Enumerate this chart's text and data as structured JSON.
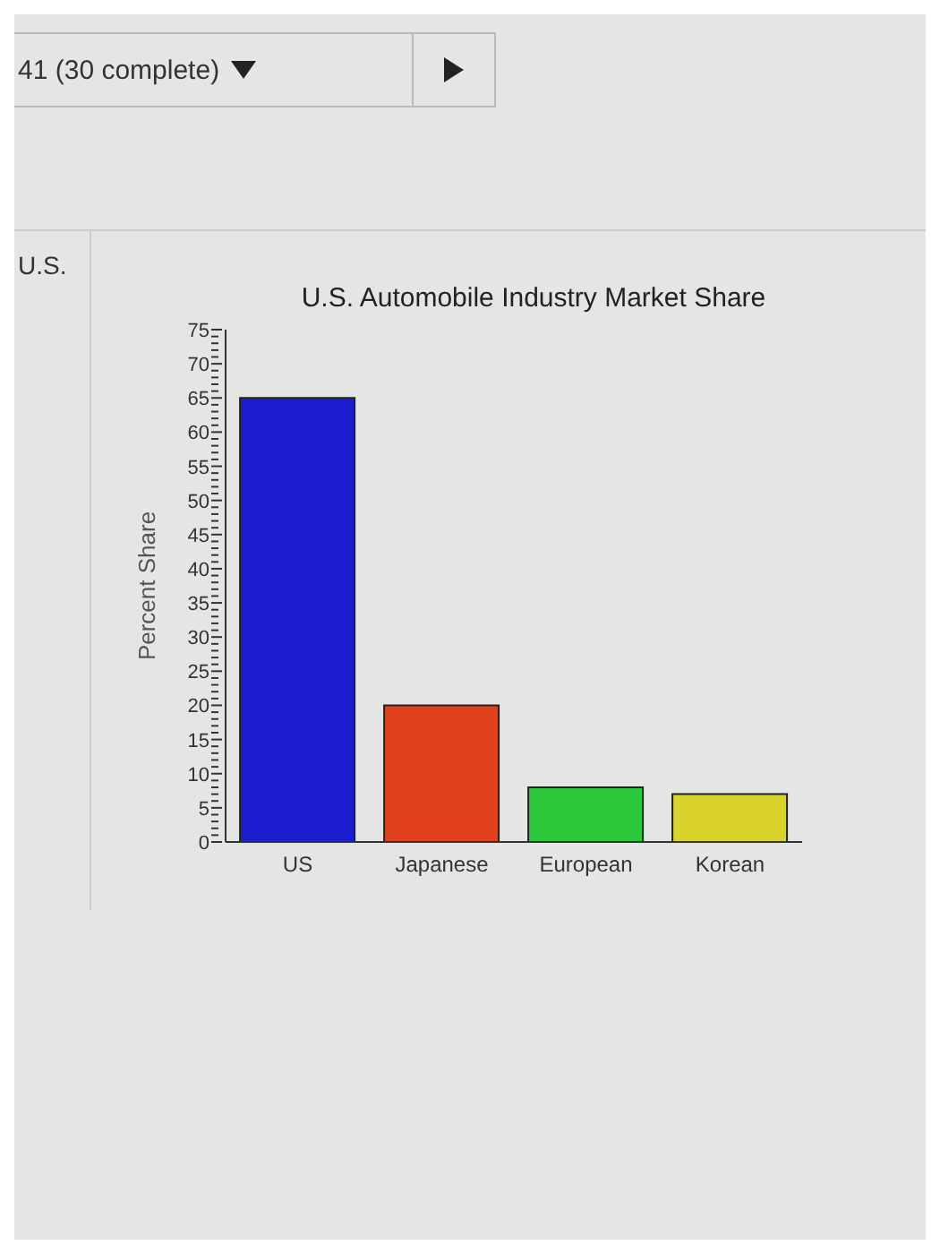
{
  "chart_data": {
    "type": "bar",
    "title": "U.S. Automobile Industry Market Share",
    "ylabel": "Percent Share",
    "categories": [
      "US",
      "Japanese",
      "European",
      "Korean"
    ],
    "values": [
      65,
      20,
      8,
      7
    ],
    "colors": [
      "#1c1cd0",
      "#e0401c",
      "#2cc83c",
      "#d8d42c"
    ],
    "ylim": [
      0,
      75
    ],
    "yticks": [
      0,
      {
        "value": 1,
        "label": null
      },
      {
        "value": 2,
        "label": null
      },
      {
        "value": 3,
        "label": null
      },
      {
        "value": 4,
        "label": null
      },
      5,
      {
        "value": 6,
        "label": null
      },
      {
        "value": 7,
        "label": null
      },
      {
        "value": 8,
        "label": null
      },
      {
        "value": 9,
        "label": null
      },
      10,
      {
        "value": 11,
        "label": null
      },
      {
        "value": 12,
        "label": null
      },
      {
        "value": 13,
        "label": null
      },
      {
        "value": 14,
        "label": null
      },
      15,
      {
        "value": 16,
        "label": null
      },
      {
        "value": 17,
        "label": null
      },
      {
        "value": 18,
        "label": null
      },
      {
        "value": 19,
        "label": null
      },
      20,
      {
        "value": 21,
        "label": null
      },
      {
        "value": 22,
        "label": null
      },
      {
        "value": 23,
        "label": null
      },
      {
        "value": 24,
        "label": null
      },
      25,
      {
        "value": 26,
        "label": null
      },
      {
        "value": 27,
        "label": null
      },
      {
        "value": 28,
        "label": null
      },
      {
        "value": 29,
        "label": null
      },
      30,
      {
        "value": 31,
        "label": null
      },
      {
        "value": 32,
        "label": null
      },
      {
        "value": 33,
        "label": null
      },
      {
        "value": 34,
        "label": null
      },
      35,
      {
        "value": 36,
        "label": null
      },
      {
        "value": 37,
        "label": null
      },
      {
        "value": 38,
        "label": null
      },
      {
        "value": 39,
        "label": null
      },
      40,
      {
        "value": 41,
        "label": null
      },
      {
        "value": 42,
        "label": null
      },
      {
        "value": 43,
        "label": null
      },
      {
        "value": 44,
        "label": null
      },
      45,
      {
        "value": 46,
        "label": null
      },
      {
        "value": 47,
        "label": null
      },
      {
        "value": 48,
        "label": null
      },
      {
        "value": 49,
        "label": null
      },
      50,
      {
        "value": 51,
        "label": null
      },
      {
        "value": 52,
        "label": null
      },
      {
        "value": 53,
        "label": null
      },
      {
        "value": 54,
        "label": null
      },
      55,
      {
        "value": 56,
        "label": null
      },
      {
        "value": 57,
        "label": null
      },
      {
        "value": 58,
        "label": null
      },
      {
        "value": 59,
        "label": null
      },
      60,
      {
        "value": 61,
        "label": null
      },
      {
        "value": 62,
        "label": null
      },
      {
        "value": 63,
        "label": null
      },
      {
        "value": 64,
        "label": null
      },
      65,
      {
        "value": 66,
        "label": null
      },
      {
        "value": 67,
        "label": null
      },
      {
        "value": 68,
        "label": null
      },
      {
        "value": 69,
        "label": null
      },
      70,
      {
        "value": 71,
        "label": null
      },
      {
        "value": 72,
        "label": null
      },
      {
        "value": 73,
        "label": null
      },
      {
        "value": 74,
        "label": null
      },
      75
    ],
    "annotations": [
      "41 (30 complete)",
      "U.S."
    ],
    "grid": false,
    "legend": false
  }
}
